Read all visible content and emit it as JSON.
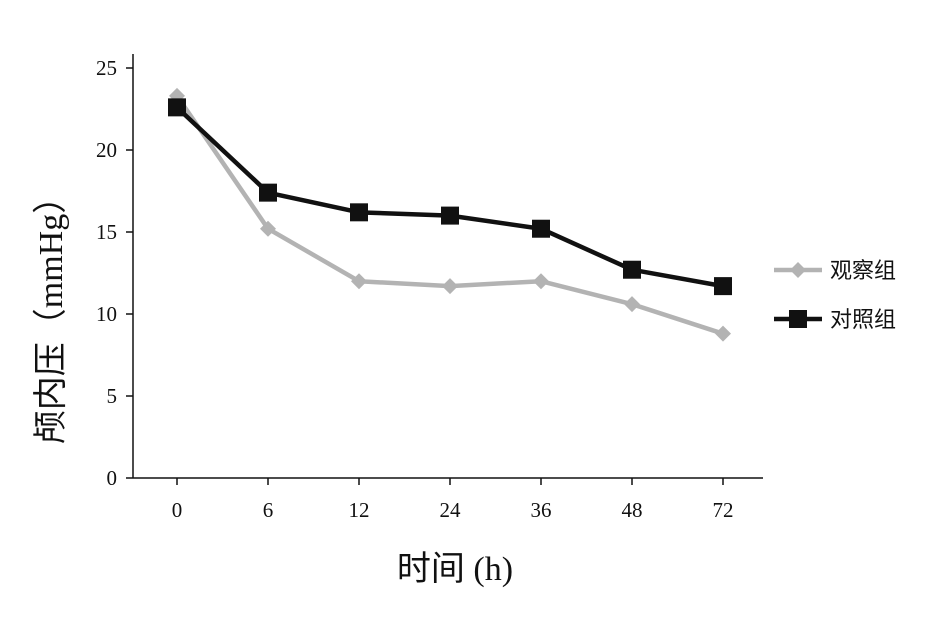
{
  "chart_data": {
    "type": "line",
    "categories": [
      "0",
      "6",
      "12",
      "24",
      "36",
      "48",
      "72"
    ],
    "series": [
      {
        "name": "观察组",
        "color": "#b3b3b3",
        "marker": "diamond",
        "values": [
          23.3,
          15.2,
          12.0,
          11.7,
          12.0,
          10.6,
          8.8
        ]
      },
      {
        "name": "对照组",
        "color": "#111111",
        "marker": "square",
        "values": [
          22.6,
          17.4,
          16.2,
          16.0,
          15.2,
          12.7,
          11.7
        ]
      }
    ],
    "xlabel": "时间 (h)",
    "ylabel": "颅内压（mmHg）",
    "ylim": [
      0,
      25
    ],
    "yticks": [
      0,
      5,
      10,
      15,
      20,
      25
    ],
    "grid": false,
    "legend": "right"
  }
}
